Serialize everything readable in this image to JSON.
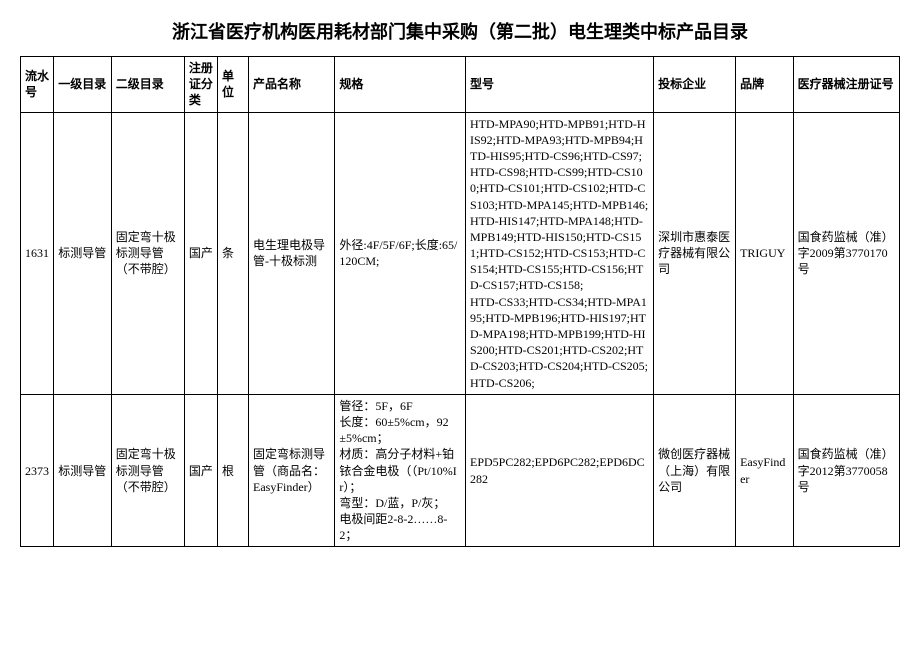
{
  "title": "浙江省医疗机构医用耗材部门集中采购（第二批）电生理类中标产品目录",
  "columns": [
    "流水号",
    "一级目录",
    "二级目录",
    "注册证分类",
    "单位",
    "产品名称",
    "规格",
    "型号",
    "投标企业",
    "品牌",
    "医疗器械注册证号"
  ],
  "rows": [
    {
      "c0": "1631",
      "c1": "标测导管",
      "c2": "固定弯十极标测导管（不带腔）",
      "c3": "国产",
      "c4": "条",
      "c5": "电生理电极导管-十极标测",
      "c6": "外径:4F/5F/6F;长度:65/120CM;",
      "c7": "HTD-MPA90;HTD-MPB91;HTD-HIS92;HTD-MPA93;HTD-MPB94;HTD-HIS95;HTD-CS96;HTD-CS97;HTD-CS98;HTD-CS99;HTD-CS100;HTD-CS101;HTD-CS102;HTD-CS103;HTD-MPA145;HTD-MPB146;HTD-HIS147;HTD-MPA148;HTD-MPB149;HTD-HIS150;HTD-CS151;HTD-CS152;HTD-CS153;HTD-CS154;HTD-CS155;HTD-CS156;HTD-CS157;HTD-CS158;\nHTD-CS33;HTD-CS34;HTD-MPA195;HTD-MPB196;HTD-HIS197;HTD-MPA198;HTD-MPB199;HTD-HIS200;HTD-CS201;HTD-CS202;HTD-CS203;HTD-CS204;HTD-CS205;\nHTD-CS206;",
      "c8": "深圳市惠泰医疗器械有限公司",
      "c9": "TRIGUY",
      "c10": "国食药监械（准）字2009第3770170号"
    },
    {
      "c0": "2373",
      "c1": "标测导管",
      "c2": "固定弯十极标测导管（不带腔）",
      "c3": "国产",
      "c4": "根",
      "c5": "固定弯标测导管（商品名：EasyFinder）",
      "c6": "管径：5F，6F\n长度：60±5%cm，92±5%cm；\n材质：高分子材料+铂铱合金电极（（Pt/10%Ir）；\n弯型：D/蓝，P/灰；\n电极间距2-8-2……8-2；",
      "c7": "EPD5PC282;EPD6PC282;EPD6DC282",
      "c8": "微创医疗器械（上海）有限公司",
      "c9": "EasyFinder",
      "c10": "国食药监械（准）字2012第3770058号"
    }
  ],
  "colWidths": [
    "30",
    "52",
    "66",
    "30",
    "28",
    "78",
    "118",
    "170",
    "74",
    "52",
    "96"
  ]
}
